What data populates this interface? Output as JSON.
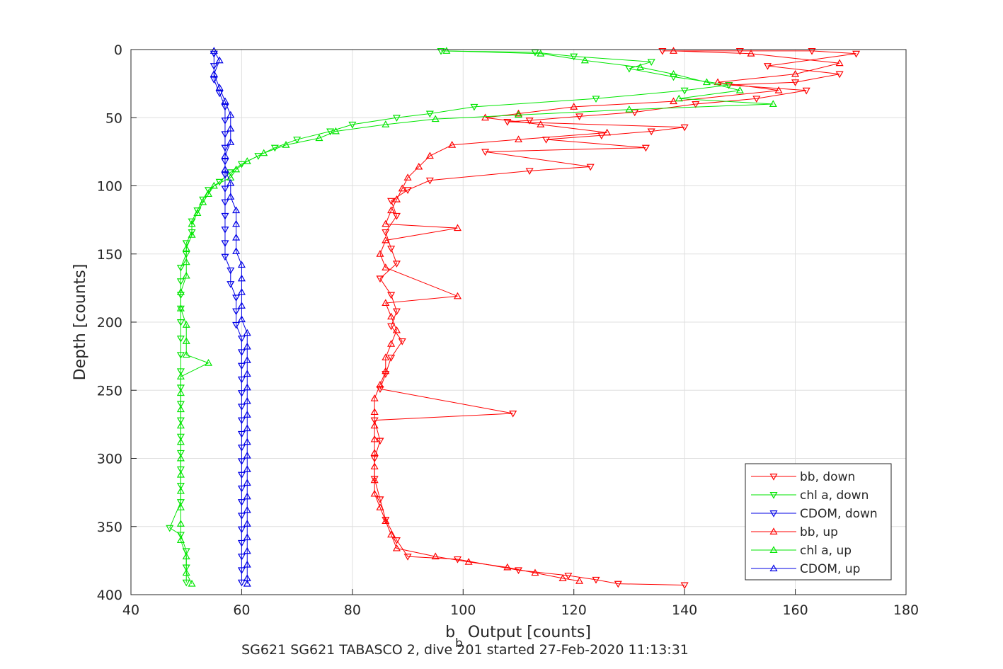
{
  "chart_data": {
    "type": "scatter",
    "xlabel": "b",
    "xlabel_sub": "b",
    "xlabel_rest": " Output [counts]",
    "ylabel": "Depth [counts]",
    "caption": "SG621 SG621 TABASCO 2, dive 201 started 27-Feb-2020 11:13:31",
    "xlim": [
      40,
      180
    ],
    "ylim": [
      0,
      400
    ],
    "y_reversed": true,
    "grid": true,
    "legend_position": "bottom-right",
    "xticks": [
      "40",
      "60",
      "80",
      "100",
      "120",
      "140",
      "160",
      "180"
    ],
    "yticks": [
      "0",
      "50",
      "100",
      "150",
      "200",
      "250",
      "300",
      "350",
      "400"
    ],
    "series": [
      {
        "name": "bb, down",
        "color": "#ff0000",
        "marker": "triangle-down",
        "points": [
          [
            136,
            1
          ],
          [
            150,
            1
          ],
          [
            163,
            1
          ],
          [
            171,
            3
          ],
          [
            155,
            12
          ],
          [
            168,
            18
          ],
          [
            160,
            24
          ],
          [
            148,
            26
          ],
          [
            162,
            30
          ],
          [
            153,
            36
          ],
          [
            142,
            40
          ],
          [
            131,
            46
          ],
          [
            121,
            49
          ],
          [
            112,
            52
          ],
          [
            108,
            53
          ],
          [
            140,
            57
          ],
          [
            134,
            60
          ],
          [
            125,
            63
          ],
          [
            115,
            66
          ],
          [
            133,
            72
          ],
          [
            104,
            75
          ],
          [
            123,
            86
          ],
          [
            112,
            89
          ],
          [
            94,
            96
          ],
          [
            90,
            103
          ],
          [
            87,
            111
          ],
          [
            88,
            122
          ],
          [
            86,
            134
          ],
          [
            87,
            146
          ],
          [
            88,
            157
          ],
          [
            85,
            168
          ],
          [
            87,
            180
          ],
          [
            88,
            192
          ],
          [
            87,
            203
          ],
          [
            89,
            214
          ],
          [
            87,
            226
          ],
          [
            86,
            238
          ],
          [
            85,
            249
          ],
          [
            109,
            267
          ],
          [
            84,
            272
          ],
          [
            85,
            287
          ],
          [
            84,
            300
          ],
          [
            84,
            315
          ],
          [
            85,
            330
          ],
          [
            86,
            345
          ],
          [
            88,
            360
          ],
          [
            90,
            372
          ],
          [
            99,
            374
          ],
          [
            110,
            382
          ],
          [
            119,
            386
          ],
          [
            124,
            389
          ],
          [
            128,
            392
          ],
          [
            140,
            393
          ]
        ]
      },
      {
        "name": "chl a, down",
        "color": "#00e600",
        "marker": "triangle-down",
        "points": [
          [
            96,
            1
          ],
          [
            113,
            2
          ],
          [
            120,
            5
          ],
          [
            134,
            9
          ],
          [
            130,
            14
          ],
          [
            138,
            20
          ],
          [
            148,
            26
          ],
          [
            140,
            30
          ],
          [
            124,
            36
          ],
          [
            102,
            42
          ],
          [
            94,
            47
          ],
          [
            88,
            50
          ],
          [
            80,
            55
          ],
          [
            76,
            60
          ],
          [
            70,
            66
          ],
          [
            66,
            72
          ],
          [
            63,
            78
          ],
          [
            60,
            84
          ],
          [
            58,
            90
          ],
          [
            56,
            97
          ],
          [
            54,
            103
          ],
          [
            53,
            110
          ],
          [
            52,
            118
          ],
          [
            51,
            126
          ],
          [
            51,
            134
          ],
          [
            50,
            142
          ],
          [
            50,
            150
          ],
          [
            49,
            160
          ],
          [
            49,
            170
          ],
          [
            49,
            180
          ],
          [
            49,
            190
          ],
          [
            49,
            200
          ],
          [
            49,
            212
          ],
          [
            49,
            224
          ],
          [
            49,
            236
          ],
          [
            49,
            248
          ],
          [
            49,
            260
          ],
          [
            49,
            272
          ],
          [
            49,
            284
          ],
          [
            49,
            296
          ],
          [
            49,
            308
          ],
          [
            49,
            320
          ],
          [
            49,
            332
          ],
          [
            47,
            351
          ],
          [
            49,
            356
          ],
          [
            50,
            368
          ],
          [
            50,
            380
          ],
          [
            50,
            391
          ]
        ]
      },
      {
        "name": "CDOM, down",
        "color": "#0000e6",
        "marker": "triangle-down",
        "points": [
          [
            55,
            3
          ],
          [
            55,
            12
          ],
          [
            55,
            22
          ],
          [
            56,
            32
          ],
          [
            57,
            42
          ],
          [
            57,
            52
          ],
          [
            57,
            62
          ],
          [
            57,
            72
          ],
          [
            57,
            82
          ],
          [
            57,
            92
          ],
          [
            57,
            102
          ],
          [
            57,
            112
          ],
          [
            57,
            122
          ],
          [
            57,
            132
          ],
          [
            57,
            142
          ],
          [
            57,
            152
          ],
          [
            58,
            162
          ],
          [
            58,
            172
          ],
          [
            59,
            182
          ],
          [
            59,
            192
          ],
          [
            59,
            202
          ],
          [
            60,
            212
          ],
          [
            60,
            222
          ],
          [
            60,
            232
          ],
          [
            60,
            242
          ],
          [
            60,
            252
          ],
          [
            60,
            262
          ],
          [
            60,
            272
          ],
          [
            60,
            282
          ],
          [
            60,
            292
          ],
          [
            60,
            302
          ],
          [
            60,
            312
          ],
          [
            60,
            322
          ],
          [
            60,
            332
          ],
          [
            60,
            342
          ],
          [
            60,
            352
          ],
          [
            60,
            362
          ],
          [
            60,
            372
          ],
          [
            60,
            382
          ],
          [
            60,
            391
          ]
        ]
      },
      {
        "name": "bb, up",
        "color": "#ff0000",
        "marker": "triangle-up",
        "points": [
          [
            138,
            1
          ],
          [
            152,
            3
          ],
          [
            168,
            10
          ],
          [
            160,
            18
          ],
          [
            146,
            24
          ],
          [
            157,
            30
          ],
          [
            138,
            38
          ],
          [
            120,
            42
          ],
          [
            110,
            47
          ],
          [
            104,
            50
          ],
          [
            114,
            55
          ],
          [
            126,
            61
          ],
          [
            110,
            66
          ],
          [
            98,
            70
          ],
          [
            94,
            78
          ],
          [
            92,
            86
          ],
          [
            90,
            94
          ],
          [
            89,
            102
          ],
          [
            88,
            110
          ],
          [
            87,
            118
          ],
          [
            86,
            128
          ],
          [
            99,
            131
          ],
          [
            86,
            140
          ],
          [
            85,
            150
          ],
          [
            86,
            160
          ],
          [
            99,
            181
          ],
          [
            86,
            186
          ],
          [
            87,
            196
          ],
          [
            88,
            206
          ],
          [
            87,
            216
          ],
          [
            86,
            226
          ],
          [
            86,
            236
          ],
          [
            85,
            246
          ],
          [
            84,
            256
          ],
          [
            84,
            266
          ],
          [
            84,
            276
          ],
          [
            84,
            286
          ],
          [
            84,
            296
          ],
          [
            84,
            306
          ],
          [
            84,
            316
          ],
          [
            84,
            326
          ],
          [
            85,
            336
          ],
          [
            86,
            346
          ],
          [
            87,
            356
          ],
          [
            88,
            366
          ],
          [
            95,
            372
          ],
          [
            101,
            376
          ],
          [
            108,
            380
          ],
          [
            113,
            384
          ],
          [
            118,
            388
          ],
          [
            121,
            390
          ]
        ]
      },
      {
        "name": "chl a, up",
        "color": "#00e600",
        "marker": "triangle-up",
        "points": [
          [
            97,
            1
          ],
          [
            114,
            3
          ],
          [
            122,
            8
          ],
          [
            132,
            13
          ],
          [
            138,
            18
          ],
          [
            144,
            24
          ],
          [
            150,
            30
          ],
          [
            139,
            36
          ],
          [
            156,
            40
          ],
          [
            130,
            44
          ],
          [
            110,
            48
          ],
          [
            95,
            51
          ],
          [
            86,
            55
          ],
          [
            77,
            60
          ],
          [
            74,
            65
          ],
          [
            68,
            70
          ],
          [
            64,
            76
          ],
          [
            61,
            82
          ],
          [
            59,
            88
          ],
          [
            58,
            94
          ],
          [
            55,
            100
          ],
          [
            54,
            106
          ],
          [
            53,
            112
          ],
          [
            52,
            120
          ],
          [
            51,
            128
          ],
          [
            51,
            136
          ],
          [
            50,
            146
          ],
          [
            50,
            156
          ],
          [
            50,
            166
          ],
          [
            49,
            178
          ],
          [
            49,
            190
          ],
          [
            50,
            202
          ],
          [
            50,
            214
          ],
          [
            50,
            224
          ],
          [
            54,
            230
          ],
          [
            49,
            240
          ],
          [
            49,
            252
          ],
          [
            49,
            264
          ],
          [
            49,
            276
          ],
          [
            49,
            288
          ],
          [
            49,
            300
          ],
          [
            49,
            312
          ],
          [
            49,
            324
          ],
          [
            49,
            336
          ],
          [
            49,
            348
          ],
          [
            49,
            360
          ],
          [
            50,
            372
          ],
          [
            50,
            384
          ],
          [
            51,
            392
          ]
        ]
      },
      {
        "name": "CDOM, up",
        "color": "#0000e6",
        "marker": "triangle-up",
        "points": [
          [
            55,
            1
          ],
          [
            56,
            8
          ],
          [
            55,
            18
          ],
          [
            56,
            28
          ],
          [
            57,
            38
          ],
          [
            58,
            48
          ],
          [
            58,
            58
          ],
          [
            58,
            68
          ],
          [
            57,
            78
          ],
          [
            57,
            88
          ],
          [
            58,
            98
          ],
          [
            58,
            108
          ],
          [
            59,
            118
          ],
          [
            59,
            128
          ],
          [
            59,
            138
          ],
          [
            59,
            148
          ],
          [
            60,
            158
          ],
          [
            60,
            168
          ],
          [
            60,
            178
          ],
          [
            60,
            188
          ],
          [
            60,
            198
          ],
          [
            61,
            208
          ],
          [
            61,
            218
          ],
          [
            61,
            228
          ],
          [
            61,
            238
          ],
          [
            61,
            248
          ],
          [
            61,
            258
          ],
          [
            61,
            268
          ],
          [
            61,
            278
          ],
          [
            61,
            288
          ],
          [
            61,
            298
          ],
          [
            61,
            308
          ],
          [
            61,
            318
          ],
          [
            61,
            328
          ],
          [
            61,
            338
          ],
          [
            61,
            348
          ],
          [
            61,
            358
          ],
          [
            61,
            368
          ],
          [
            61,
            378
          ],
          [
            61,
            388
          ],
          [
            61,
            392
          ]
        ]
      }
    ]
  }
}
